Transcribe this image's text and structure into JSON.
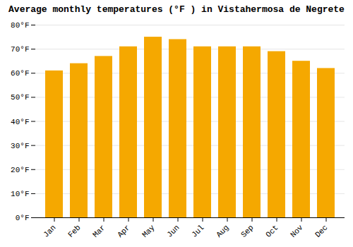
{
  "chart_data": {
    "type": "bar",
    "title": "Average monthly temperatures (°F ) in Vistahermosa de Negrete",
    "categories": [
      "Jan",
      "Feb",
      "Mar",
      "Apr",
      "May",
      "Jun",
      "Jul",
      "Aug",
      "Sep",
      "Oct",
      "Nov",
      "Dec"
    ],
    "values": [
      61,
      64,
      67,
      71,
      75,
      74,
      71,
      71,
      71,
      69,
      65,
      62
    ],
    "color": "#F5A800",
    "ylim": [
      0,
      80
    ],
    "yticks": [
      {
        "value": 0,
        "label": "0°F"
      },
      {
        "value": 10,
        "label": "10°F"
      },
      {
        "value": 20,
        "label": "20°F"
      },
      {
        "value": 30,
        "label": "30°F"
      },
      {
        "value": 40,
        "label": "40°F"
      },
      {
        "value": 50,
        "label": "50°F"
      },
      {
        "value": 60,
        "label": "60°F"
      },
      {
        "value": 70,
        "label": "70°F"
      },
      {
        "value": 80,
        "label": "80°F"
      }
    ],
    "grid": true
  }
}
